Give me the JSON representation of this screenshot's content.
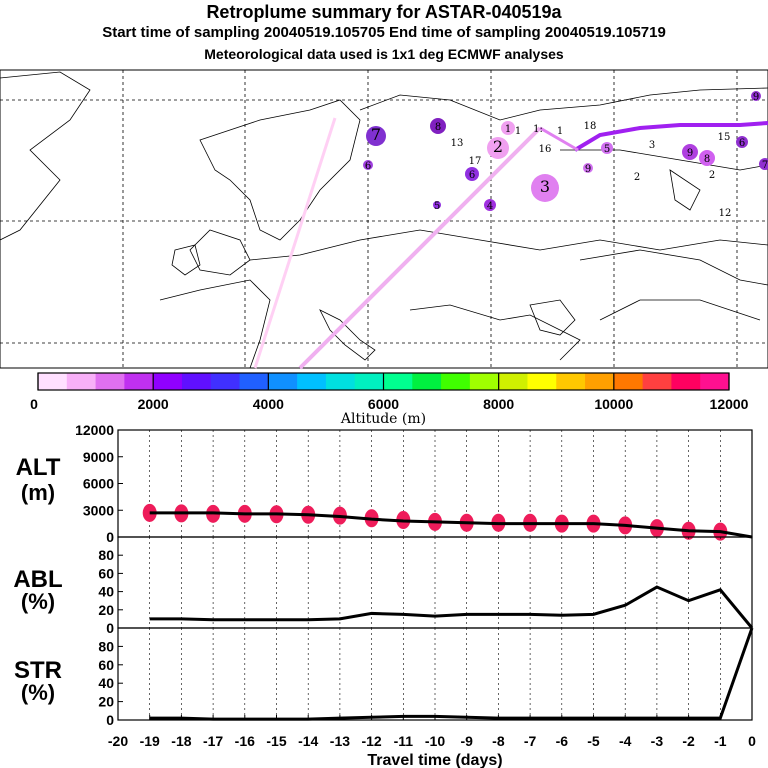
{
  "header": {
    "title": "Retroplume summary for ASTAR-040519a",
    "sampling": "Start time of sampling 20040519.105705     End time of sampling 20040519.105719",
    "met": "Meteorological data used is 1x1 deg ECMWF analyses"
  },
  "colorbar": {
    "label": "Altitude (m)",
    "ticks": [
      "0",
      "2000",
      "4000",
      "6000",
      "8000",
      "10000",
      "12000"
    ],
    "colors": [
      "#ffe0ff",
      "#f8b0f8",
      "#e070f0",
      "#c030f0",
      "#9000ff",
      "#6010ff",
      "#4030ff",
      "#2060ff",
      "#1090ff",
      "#00c0ff",
      "#00e0e0",
      "#00f0c0",
      "#00ff90",
      "#00f040",
      "#40ff00",
      "#a0ff00",
      "#d0f000",
      "#ffff00",
      "#ffc800",
      "#ffa000",
      "#ff7800",
      "#ff4040",
      "#ff0060",
      "#ff1090",
      "#f010a0",
      "#d010a0",
      "#b010a0",
      "#901090"
    ]
  },
  "map": {
    "labels": [
      {
        "t": "1",
        "c": "#f0a0f0",
        "r": 7
      },
      {
        "t": "1",
        "c": "#fff",
        "r": 0
      },
      {
        "t": "1:",
        "c": "#fff",
        "r": 0
      },
      {
        "t": "1",
        "c": "#fff",
        "r": 0
      },
      {
        "t": "2",
        "c": "#f0a0f0",
        "r": 11
      },
      {
        "t": "3",
        "c": "#e080f0",
        "r": 14
      },
      {
        "t": "4",
        "c": "#a030e0",
        "r": 6
      },
      {
        "t": "5",
        "c": "#9030e0",
        "r": 4
      },
      {
        "t": "6",
        "c": "#9030e0",
        "r": 7
      },
      {
        "t": "7",
        "c": "#8030d0",
        "r": 10
      },
      {
        "t": "8",
        "c": "#8020c0",
        "r": 8
      },
      {
        "t": "9",
        "c": "#d070f0",
        "r": 5
      },
      {
        "t": "5",
        "c": "#d070f0",
        "r": 6
      },
      {
        "t": "3",
        "c": "#fff",
        "r": 0
      },
      {
        "t": "2",
        "c": "#fff",
        "r": 0
      },
      {
        "t": "8",
        "c": "#d060f0",
        "r": 8
      },
      {
        "t": "2",
        "c": "#fff",
        "r": 0
      },
      {
        "t": "9",
        "c": "#b040e0",
        "r": 8
      },
      {
        "t": "12",
        "c": "#fff",
        "r": 0
      },
      {
        "t": "13",
        "c": "#fff",
        "r": 0
      },
      {
        "t": "15",
        "c": "#fff",
        "r": 0
      },
      {
        "t": "16",
        "c": "#fff",
        "r": 0
      },
      {
        "t": "17",
        "c": "#fff",
        "r": 0
      },
      {
        "t": "18",
        "c": "#fff",
        "r": 0
      },
      {
        "t": "6",
        "c": "#a040e0",
        "r": 5
      },
      {
        "t": "9",
        "c": "#9030d0",
        "r": 5
      },
      {
        "t": "7",
        "c": "#9030d0",
        "r": 6
      },
      {
        "t": "6",
        "c": "#9030d0",
        "r": 6
      }
    ]
  },
  "chart_data": [
    {
      "type": "line",
      "title": "ALT (m)",
      "ylabel": "ALT\n(m)",
      "yticks": [
        "0",
        "3000",
        "6000",
        "9000",
        "12000"
      ],
      "ylim": [
        0,
        12000
      ],
      "x": [
        -19,
        -18,
        -17,
        -16,
        -15,
        -14,
        -13,
        -12,
        -11,
        -10,
        -9,
        -8,
        -7,
        -6,
        -5,
        -4,
        -3,
        -2,
        -1,
        0
      ],
      "values": [
        2700,
        2700,
        2700,
        2600,
        2600,
        2500,
        2300,
        2000,
        1800,
        1700,
        1600,
        1500,
        1500,
        1500,
        1500,
        1300,
        1000,
        700,
        600,
        0
      ],
      "scatter_values": [
        2700,
        2650,
        2600,
        2600,
        2550,
        2500,
        2400,
        2100,
        1900,
        1700,
        1600,
        1600,
        1600,
        1500,
        1500,
        1300,
        1000,
        700,
        600
      ]
    },
    {
      "type": "line",
      "title": "ABL (%)",
      "ylabel": "ABL\n(%)",
      "yticks": [
        "0",
        "20",
        "40",
        "60",
        "80"
      ],
      "ylim": [
        0,
        100
      ],
      "x": [
        -19,
        -18,
        -17,
        -16,
        -15,
        -14,
        -13,
        -12,
        -11,
        -10,
        -9,
        -8,
        -7,
        -6,
        -5,
        -4,
        -3,
        -2,
        -1,
        0
      ],
      "values": [
        10,
        10,
        9,
        9,
        9,
        9,
        10,
        16,
        15,
        13,
        15,
        15,
        15,
        14,
        15,
        25,
        45,
        30,
        42,
        0
      ]
    },
    {
      "type": "line",
      "title": "STR (%)",
      "ylabel": "STR\n(%)",
      "yticks": [
        "0",
        "20",
        "40",
        "60",
        "80"
      ],
      "ylim": [
        0,
        100
      ],
      "x": [
        -19,
        -18,
        -17,
        -16,
        -15,
        -14,
        -13,
        -12,
        -11,
        -10,
        -9,
        -8,
        -7,
        -6,
        -5,
        -4,
        -3,
        -2,
        -1,
        0
      ],
      "values": [
        2,
        2,
        1,
        1,
        1,
        1,
        2,
        3,
        4,
        4,
        3,
        2,
        2,
        2,
        2,
        2,
        2,
        2,
        2,
        100
      ]
    }
  ],
  "xaxis": {
    "ticks": [
      "-20",
      "-19",
      "-18",
      "-17",
      "-16",
      "-15",
      "-14",
      "-13",
      "-12",
      "-11",
      "-10",
      "-9",
      "-8",
      "-7",
      "-6",
      "-5",
      "-4",
      "-3",
      "-2",
      "-1",
      "0"
    ],
    "label": "Travel time (days)"
  }
}
